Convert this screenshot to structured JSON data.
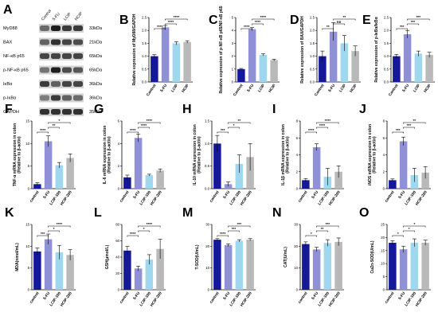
{
  "colors": {
    "Control": "#16189a",
    "5-FU": "#8f90d6",
    "LCIP": "#9ed7ee",
    "HCIP": "#b9b9b9"
  },
  "blot": {
    "letter": "A",
    "lanes": [
      "Control",
      "5-FU",
      "LCIP",
      "HCIP"
    ],
    "rows": [
      {
        "protein": "MyD88",
        "kda": "33kDa"
      },
      {
        "protein": "BAX",
        "kda": "21kDa"
      },
      {
        "protein": "NF-κB p65",
        "kda": "65kDa"
      },
      {
        "protein": "p-NF-κB p65",
        "kda": "65kDa"
      },
      {
        "protein": "IκBα",
        "kda": "36kDa"
      },
      {
        "protein": "p-IκBα",
        "kda": "36kDa"
      },
      {
        "protein": "GAPDH",
        "kda": "35kDa"
      }
    ]
  },
  "chart_data": [
    {
      "letter": "B",
      "type": "bar",
      "ylabel": "Relative expression of MyD88/GAPDH",
      "categories": [
        "Control",
        "5-FU",
        "LCIP",
        "HCIP"
      ],
      "values": [
        1.0,
        2.12,
        1.5,
        1.55
      ],
      "errors": [
        0.06,
        0.07,
        0.06,
        0.05
      ],
      "ylim": [
        0,
        2.5
      ],
      "ticks": [
        "0.0",
        "0.5",
        "1.0",
        "1.5",
        "2.0",
        "2.5"
      ],
      "sig": [
        {
          "from": 0,
          "to": 1,
          "text": "****"
        },
        {
          "from": 1,
          "to": 2,
          "text": "****"
        },
        {
          "from": 1,
          "to": 3,
          "text": "****"
        }
      ]
    },
    {
      "letter": "C",
      "type": "bar",
      "ylabel": "Relative expression of p-NF-κB p65/NF-κB p65",
      "categories": [
        "Control",
        "5-FU",
        "LCIP",
        "HCIP"
      ],
      "values": [
        1.0,
        4.1,
        2.1,
        1.7
      ],
      "errors": [
        0.05,
        0.12,
        0.08,
        0.07
      ],
      "ylim": [
        0,
        5
      ],
      "ticks": [
        "0",
        "1",
        "2",
        "3",
        "4",
        "5"
      ],
      "sig": [
        {
          "from": 0,
          "to": 1,
          "text": "****"
        },
        {
          "from": 1,
          "to": 2,
          "text": "****"
        },
        {
          "from": 1,
          "to": 3,
          "text": "****"
        }
      ]
    },
    {
      "letter": "D",
      "type": "bar",
      "ylabel": "Relative expression of BAX/GAPDH",
      "categories": [
        "Control",
        "5-FU",
        "LCIP",
        "HCIP"
      ],
      "values": [
        1.0,
        1.95,
        1.5,
        1.2
      ],
      "errors": [
        0.2,
        0.35,
        0.3,
        0.2
      ],
      "ylim": [
        0,
        2.5
      ],
      "ticks": [
        "0.0",
        "0.5",
        "1.0",
        "1.5",
        "2.0",
        "2.5"
      ],
      "sig": [
        {
          "from": 0,
          "to": 1,
          "text": "**"
        },
        {
          "from": 1,
          "to": 2,
          "text": "ns"
        },
        {
          "from": 1,
          "to": 3,
          "text": "**"
        }
      ]
    },
    {
      "letter": "E",
      "type": "bar",
      "ylabel": "Relative expression of p-IκBα/IκBα",
      "categories": [
        "Control",
        "5-FU",
        "LCIP",
        "HCIP"
      ],
      "values": [
        1.0,
        1.85,
        1.1,
        1.05
      ],
      "errors": [
        0.07,
        0.15,
        0.1,
        0.1
      ],
      "ylim": [
        0,
        2.5
      ],
      "ticks": [
        "0.0",
        "0.5",
        "1.0",
        "1.5",
        "2.0",
        "2.5"
      ],
      "sig": [
        {
          "from": 0,
          "to": 1,
          "text": "***"
        },
        {
          "from": 1,
          "to": 2,
          "text": "***"
        },
        {
          "from": 1,
          "to": 3,
          "text": "***"
        }
      ]
    },
    {
      "letter": "F",
      "type": "bar",
      "ylabel": "TNF-α mRNA expression in colon (Relative to β-actin)",
      "categories": [
        "control",
        "5-FU",
        "LCIP-100",
        "HCIP-200"
      ],
      "values": [
        1.0,
        10.5,
        5.2,
        6.8
      ],
      "errors": [
        0.3,
        1.2,
        0.6,
        0.9
      ],
      "ylim": [
        0,
        15
      ],
      "ticks": [
        "0",
        "5",
        "10",
        "15"
      ],
      "sig": [
        {
          "from": 0,
          "to": 1,
          "text": "****"
        },
        {
          "from": 1,
          "to": 2,
          "text": "**"
        },
        {
          "from": 1,
          "to": 3,
          "text": "*"
        }
      ]
    },
    {
      "letter": "G",
      "type": "bar",
      "ylabel": "IL-6 mRNA expression in colon (Relative to β-actin)",
      "categories": [
        "control",
        "5-FU",
        "LCIP-100",
        "HCIP-200"
      ],
      "values": [
        1.0,
        4.5,
        1.2,
        1.6
      ],
      "errors": [
        0.2,
        0.35,
        0.08,
        0.15
      ],
      "ylim": [
        0,
        6
      ],
      "ticks": [
        "0",
        "2",
        "4",
        "6"
      ],
      "sig": [
        {
          "from": 0,
          "to": 1,
          "text": "****"
        },
        {
          "from": 1,
          "to": 2,
          "text": "****"
        },
        {
          "from": 1,
          "to": 3,
          "text": "****"
        }
      ]
    },
    {
      "letter": "H",
      "type": "bar",
      "ylabel": "IL-10 mRNA expression in colon (Relative to β-actin)",
      "categories": [
        "control",
        "5-FU",
        "LCIP-100",
        "HCIP-200"
      ],
      "values": [
        1.0,
        0.1,
        0.55,
        0.7
      ],
      "errors": [
        0.18,
        0.05,
        0.2,
        0.3
      ],
      "ylim": [
        0,
        1.5
      ],
      "ticks": [
        "0.0",
        "0.5",
        "1.0",
        "1.5"
      ],
      "sig": [
        {
          "from": 0,
          "to": 1,
          "text": "***"
        },
        {
          "from": 1,
          "to": 2,
          "text": "*"
        },
        {
          "from": 1,
          "to": 3,
          "text": "**"
        }
      ]
    },
    {
      "letter": "I",
      "type": "bar",
      "ylabel": "IL-1β mRNA expression in colon (Relative to β-actin)",
      "categories": [
        "control",
        "5-FU",
        "LCIP-100",
        "HCIP-200"
      ],
      "values": [
        1.0,
        4.9,
        1.4,
        2.0
      ],
      "errors": [
        0.2,
        0.4,
        1.0,
        0.7
      ],
      "ylim": [
        0,
        8
      ],
      "ticks": [
        "0",
        "2",
        "4",
        "6",
        "8"
      ],
      "sig": [
        {
          "from": 0,
          "to": 1,
          "text": "****"
        },
        {
          "from": 1,
          "to": 2,
          "text": "****"
        },
        {
          "from": 1,
          "to": 3,
          "text": "****"
        }
      ]
    },
    {
      "letter": "J",
      "type": "bar",
      "ylabel": "iNOS mRNA expression in colon (Relative to β-actin)",
      "categories": [
        "control",
        "5-FU",
        "LCIP-100",
        "HCIP-200"
      ],
      "values": [
        1.0,
        5.6,
        1.6,
        1.9
      ],
      "errors": [
        0.15,
        0.5,
        0.8,
        0.7
      ],
      "ylim": [
        0,
        8
      ],
      "ticks": [
        "0",
        "2",
        "4",
        "6",
        "8"
      ],
      "sig": [
        {
          "from": 0,
          "to": 1,
          "text": "***"
        },
        {
          "from": 1,
          "to": 2,
          "text": "***"
        },
        {
          "from": 1,
          "to": 3,
          "text": "**"
        }
      ]
    },
    {
      "letter": "K",
      "type": "bar",
      "ylabel": "MDA(nmol/mL)",
      "categories": [
        "control",
        "5-FU",
        "LCIP-100",
        "HCIP-200"
      ],
      "values": [
        8.8,
        11.6,
        8.6,
        8.0
      ],
      "errors": [
        0.8,
        1.2,
        1.6,
        1.2
      ],
      "ylim": [
        0,
        15
      ],
      "ticks": [
        "0",
        "5",
        "10",
        "15"
      ],
      "sig": [
        {
          "from": 0,
          "to": 1,
          "text": "***"
        },
        {
          "from": 1,
          "to": 2,
          "text": "*"
        },
        {
          "from": 1,
          "to": 3,
          "text": "****"
        }
      ]
    },
    {
      "letter": "L",
      "type": "bar",
      "ylabel": "GSH(μmol/L)",
      "categories": [
        "control",
        "5-FU",
        "LCIP-100",
        "HCIP-200"
      ],
      "values": [
        48.0,
        26.0,
        37.0,
        50.0
      ],
      "errors": [
        5.0,
        3.0,
        6.0,
        12.0
      ],
      "ylim": [
        0,
        80
      ],
      "ticks": [
        "0",
        "20",
        "40",
        "60",
        "80"
      ],
      "sig": [
        {
          "from": 0,
          "to": 1,
          "text": "****"
        },
        {
          "from": 1,
          "to": 2,
          "text": "*"
        },
        {
          "from": 1,
          "to": 3,
          "text": "****"
        }
      ]
    },
    {
      "letter": "M",
      "type": "bar",
      "ylabel": "T-SOD(U/mL)",
      "categories": [
        "control",
        "5-FU",
        "LCIP-100",
        "HCIP-200"
      ],
      "values": [
        23.0,
        20.5,
        22.5,
        23.0
      ],
      "errors": [
        0.5,
        0.6,
        0.5,
        0.5
      ],
      "ylim": [
        0,
        30
      ],
      "ticks": [
        "0",
        "10",
        "20",
        "30"
      ],
      "sig": [
        {
          "from": 0,
          "to": 1,
          "text": "****"
        },
        {
          "from": 1,
          "to": 2,
          "text": "***"
        },
        {
          "from": 1,
          "to": 3,
          "text": "***"
        }
      ]
    },
    {
      "letter": "N",
      "type": "bar",
      "ylabel": "CAT(U/mL)",
      "categories": [
        "control",
        "5-FU",
        "LCIP-100",
        "HCIP-200"
      ],
      "values": [
        21.0,
        18.5,
        21.5,
        22.0
      ],
      "errors": [
        1.0,
        1.0,
        1.5,
        1.8
      ],
      "ylim": [
        0,
        30
      ],
      "ticks": [
        "0",
        "10",
        "20",
        "30"
      ],
      "sig": [
        {
          "from": 0,
          "to": 1,
          "text": "*"
        },
        {
          "from": 1,
          "to": 2,
          "text": "**"
        },
        {
          "from": 1,
          "to": 3,
          "text": "***"
        }
      ]
    },
    {
      "letter": "O",
      "type": "bar",
      "ylabel": "CuZn-SOD(U/mL)",
      "categories": [
        "control",
        "5-FU",
        "LCIP-100",
        "HCIP-200"
      ],
      "values": [
        18.0,
        15.5,
        18.0,
        18.0
      ],
      "errors": [
        0.8,
        1.2,
        1.5,
        1.0
      ],
      "ylim": [
        0,
        25
      ],
      "ticks": [
        "0",
        "5",
        "10",
        "15",
        "20",
        "25"
      ],
      "sig": [
        {
          "from": 0,
          "to": 1,
          "text": "*"
        },
        {
          "from": 1,
          "to": 2,
          "text": "*"
        },
        {
          "from": 1,
          "to": 3,
          "text": "*"
        }
      ]
    }
  ]
}
